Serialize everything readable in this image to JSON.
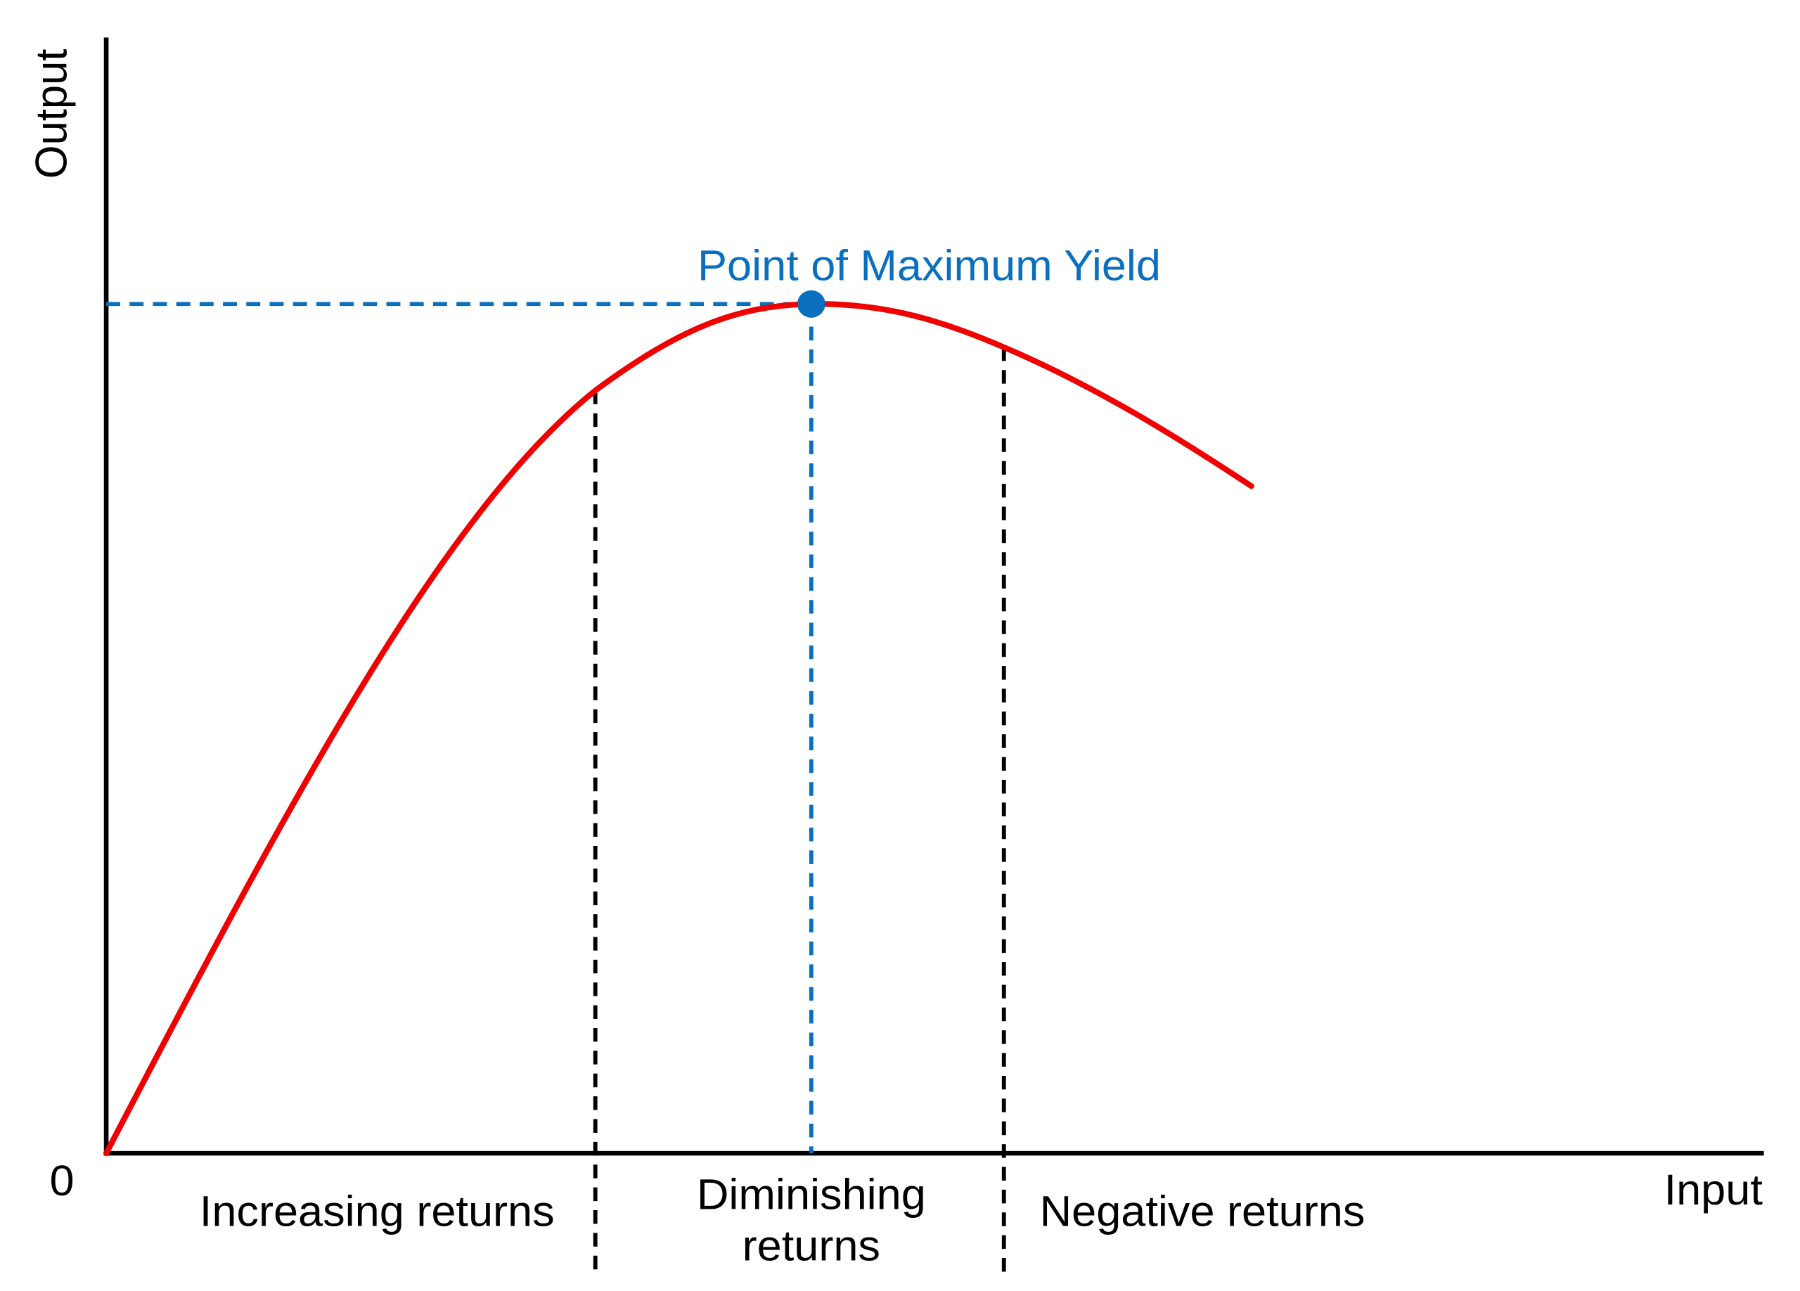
{
  "axes": {
    "y_label": "Output",
    "x_label": "Input",
    "origin": "0"
  },
  "annotation": "Point of Maximum Yield",
  "regions": [
    {
      "label": "Increasing returns"
    },
    {
      "lines": [
        "Diminishing",
        "returns"
      ]
    },
    {
      "label": "Negative returns"
    }
  ]
}
